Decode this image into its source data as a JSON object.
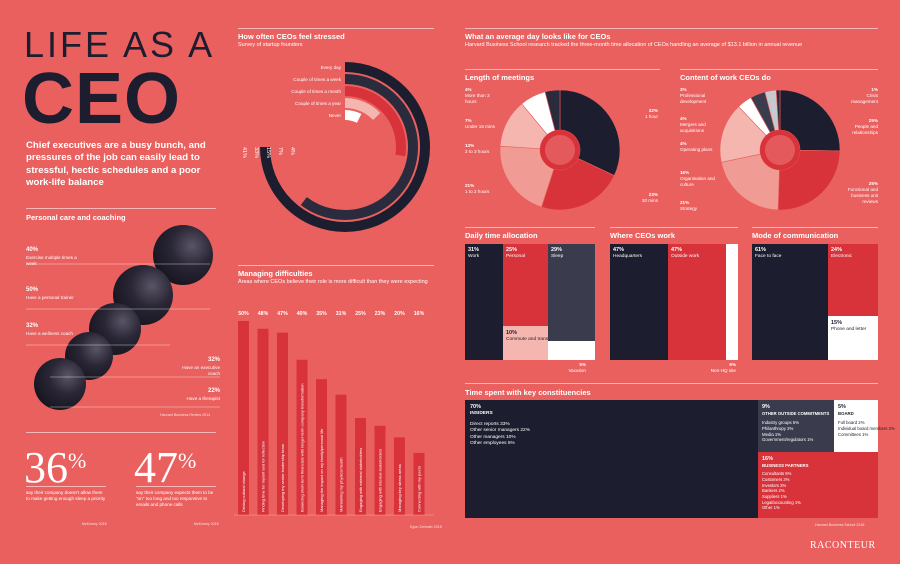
{
  "title_line1": "LIFE AS A",
  "title_line2": "CEO",
  "intro": "Chief executives are a busy bunch, and pressures of the job can easily lead to stressful, hectic schedules and a poor work-life balance",
  "personal": {
    "heading": "Personal care and coaching",
    "items": [
      {
        "pct": "40%",
        "text": "Exercise multiple times a week"
      },
      {
        "pct": "50%",
        "text": "Have a personal trainer"
      },
      {
        "pct": "32%",
        "text": "Have a wellness coach"
      },
      {
        "pct": "32%",
        "text": "Have an executive coach"
      },
      {
        "pct": "22%",
        "text": "Have a therapist"
      }
    ],
    "source": "Harvard Business Review 2014"
  },
  "stat1": {
    "num": "36",
    "pct": "%",
    "text": "say their company doesn't allow them to make getting enough sleep a priority",
    "source": "McKinsey 2016"
  },
  "stat2": {
    "num": "47",
    "pct": "%",
    "text": "say their company expects them to be \"on\" too long and too responsive to emails and phone calls",
    "source": "McKinsey 2016"
  },
  "stress": {
    "heading": "How often CEOs feel stressed",
    "sub": "Survey of startup founders",
    "chart_data": {
      "type": "radial-bar",
      "categories": [
        "Every day",
        "Couple of times a week",
        "Couple of times a month",
        "Couple of times a year",
        "Never"
      ],
      "values": [
        41,
        33,
        15,
        7,
        4
      ],
      "labels": [
        "41%",
        "33%",
        "15%",
        "7%",
        "4%"
      ]
    }
  },
  "difficulties": {
    "heading": "Managing difficulties",
    "sub": "Areas where CEOs believe their role is more difficult than they were expecting",
    "source": "Egon Zehnder 2018",
    "chart_data": {
      "type": "bar",
      "categories": [
        "Driving cultural change",
        "Finding time for myself and for reflection",
        "Developing my senior leadership team",
        "Balancing short-term financials with longer-term company transformation",
        "Managing the impact on my family/personal life",
        "Maintaining my physical health",
        "Engaging with external stakeholders",
        "Engaging with internal stakeholders",
        "Managing key stress areas",
        "Connecting with my peers"
      ],
      "values": [
        50,
        48,
        47,
        40,
        35,
        31,
        25,
        23,
        20,
        16
      ],
      "labels": [
        "50%",
        "48%",
        "47%",
        "40%",
        "35%",
        "31%",
        "25%",
        "23%",
        "20%",
        "16%"
      ],
      "ylim": [
        0,
        50
      ]
    }
  },
  "day": {
    "heading": "What an average day looks like for CEOs",
    "sub": "Harvard Business School research tracked the three-month time allocation of CEOs handling an average of $13.1 billion in annual revenue"
  },
  "meetings": {
    "heading": "Length of meetings",
    "chart_data": {
      "type": "pie",
      "categories": [
        "1 hour",
        "30 mins",
        "1 to 2 hours",
        "2 to 3 hours",
        "Under 15 mins",
        "More than 3 hours"
      ],
      "values": [
        32,
        23,
        21,
        13,
        7,
        4
      ]
    },
    "labels": [
      {
        "pct": "32%",
        "text": "1 hour"
      },
      {
        "pct": "23%",
        "text": "30 mins"
      },
      {
        "pct": "21%",
        "text": "1 to 2 hours"
      },
      {
        "pct": "13%",
        "text": "2 to 3 hours"
      },
      {
        "pct": "7%",
        "text": "Under 15 mins"
      },
      {
        "pct": "4%",
        "text": "More than 3 hours"
      }
    ]
  },
  "content": {
    "heading": "Content of work CEOs do",
    "chart_data": {
      "type": "pie",
      "categories": [
        "People and relationships",
        "Functional and business unit reviews",
        "Strategy",
        "Organisation and culture",
        "Operating plans",
        "Mergers and acquisitions",
        "Professional development",
        "Crisis management"
      ],
      "values": [
        25,
        25,
        21,
        16,
        4,
        4,
        3,
        1
      ]
    },
    "labels": [
      {
        "pct": "1%",
        "text": "Crisis management"
      },
      {
        "pct": "25%",
        "text": "People and relationships"
      },
      {
        "pct": "25%",
        "text": "Functional and business unit reviews"
      },
      {
        "pct": "21%",
        "text": "Strategy"
      },
      {
        "pct": "16%",
        "text": "Organisation and culture"
      },
      {
        "pct": "4%",
        "text": "Operating plans"
      },
      {
        "pct": "4%",
        "text": "Mergers and acquisitions"
      },
      {
        "pct": "3%",
        "text": "Professional development"
      }
    ]
  },
  "daily": {
    "heading": "Daily time allocation",
    "work": {
      "pct": "31%",
      "text": "Work"
    },
    "personal": {
      "pct": "25%",
      "text": "Personal"
    },
    "sleep": {
      "pct": "29%",
      "text": "Sleep"
    },
    "commute": {
      "pct": "10%",
      "text": "Commute and transit"
    },
    "vacation": {
      "pct": "5%",
      "text": "Vacation"
    }
  },
  "where": {
    "heading": "Where CEOs work",
    "hq": {
      "pct": "47%",
      "text": "Headquarters"
    },
    "outside": {
      "pct": "47%",
      "text": "Outside work"
    },
    "nonhq": {
      "pct": "6%",
      "text": "Non-HQ site"
    }
  },
  "mode": {
    "heading": "Mode of communication",
    "face": {
      "pct": "61%",
      "text": "Face to face"
    },
    "electronic": {
      "pct": "24%",
      "text": "Electronic"
    },
    "phone": {
      "pct": "15%",
      "text": "Phone and letter"
    }
  },
  "constituencies": {
    "heading": "Time spent with key constituencies",
    "insiders": {
      "pct": "70%",
      "title": "INSIDERS",
      "lines": [
        "Direct reports 33%",
        "Other senior managers 22%",
        "Other managers 10%",
        "Other employees 5%"
      ]
    },
    "outside": {
      "pct": "9%",
      "title": "OTHER OUTSIDE COMMITMENTS",
      "lines": [
        "Industry groups 5%",
        "Philanthropy 2%",
        "Media 1%",
        "Government/regulators 1%"
      ]
    },
    "board": {
      "pct": "5%",
      "title": "BOARD",
      "lines": [
        "Full board 2%",
        "Individual board members 2%",
        "Committees 1%"
      ]
    },
    "partners": {
      "pct": "16%",
      "title": "BUSINESS PARTNERS",
      "lines": [
        "Consultants 5%",
        "Customers 3%",
        "Investors 3%",
        "Bankers 2%",
        "Suppliers 1%",
        "Legal/accounting 1%",
        "Other 1%"
      ]
    },
    "source": "Harvard Business School 2018"
  },
  "brand": "RACONTEUR"
}
